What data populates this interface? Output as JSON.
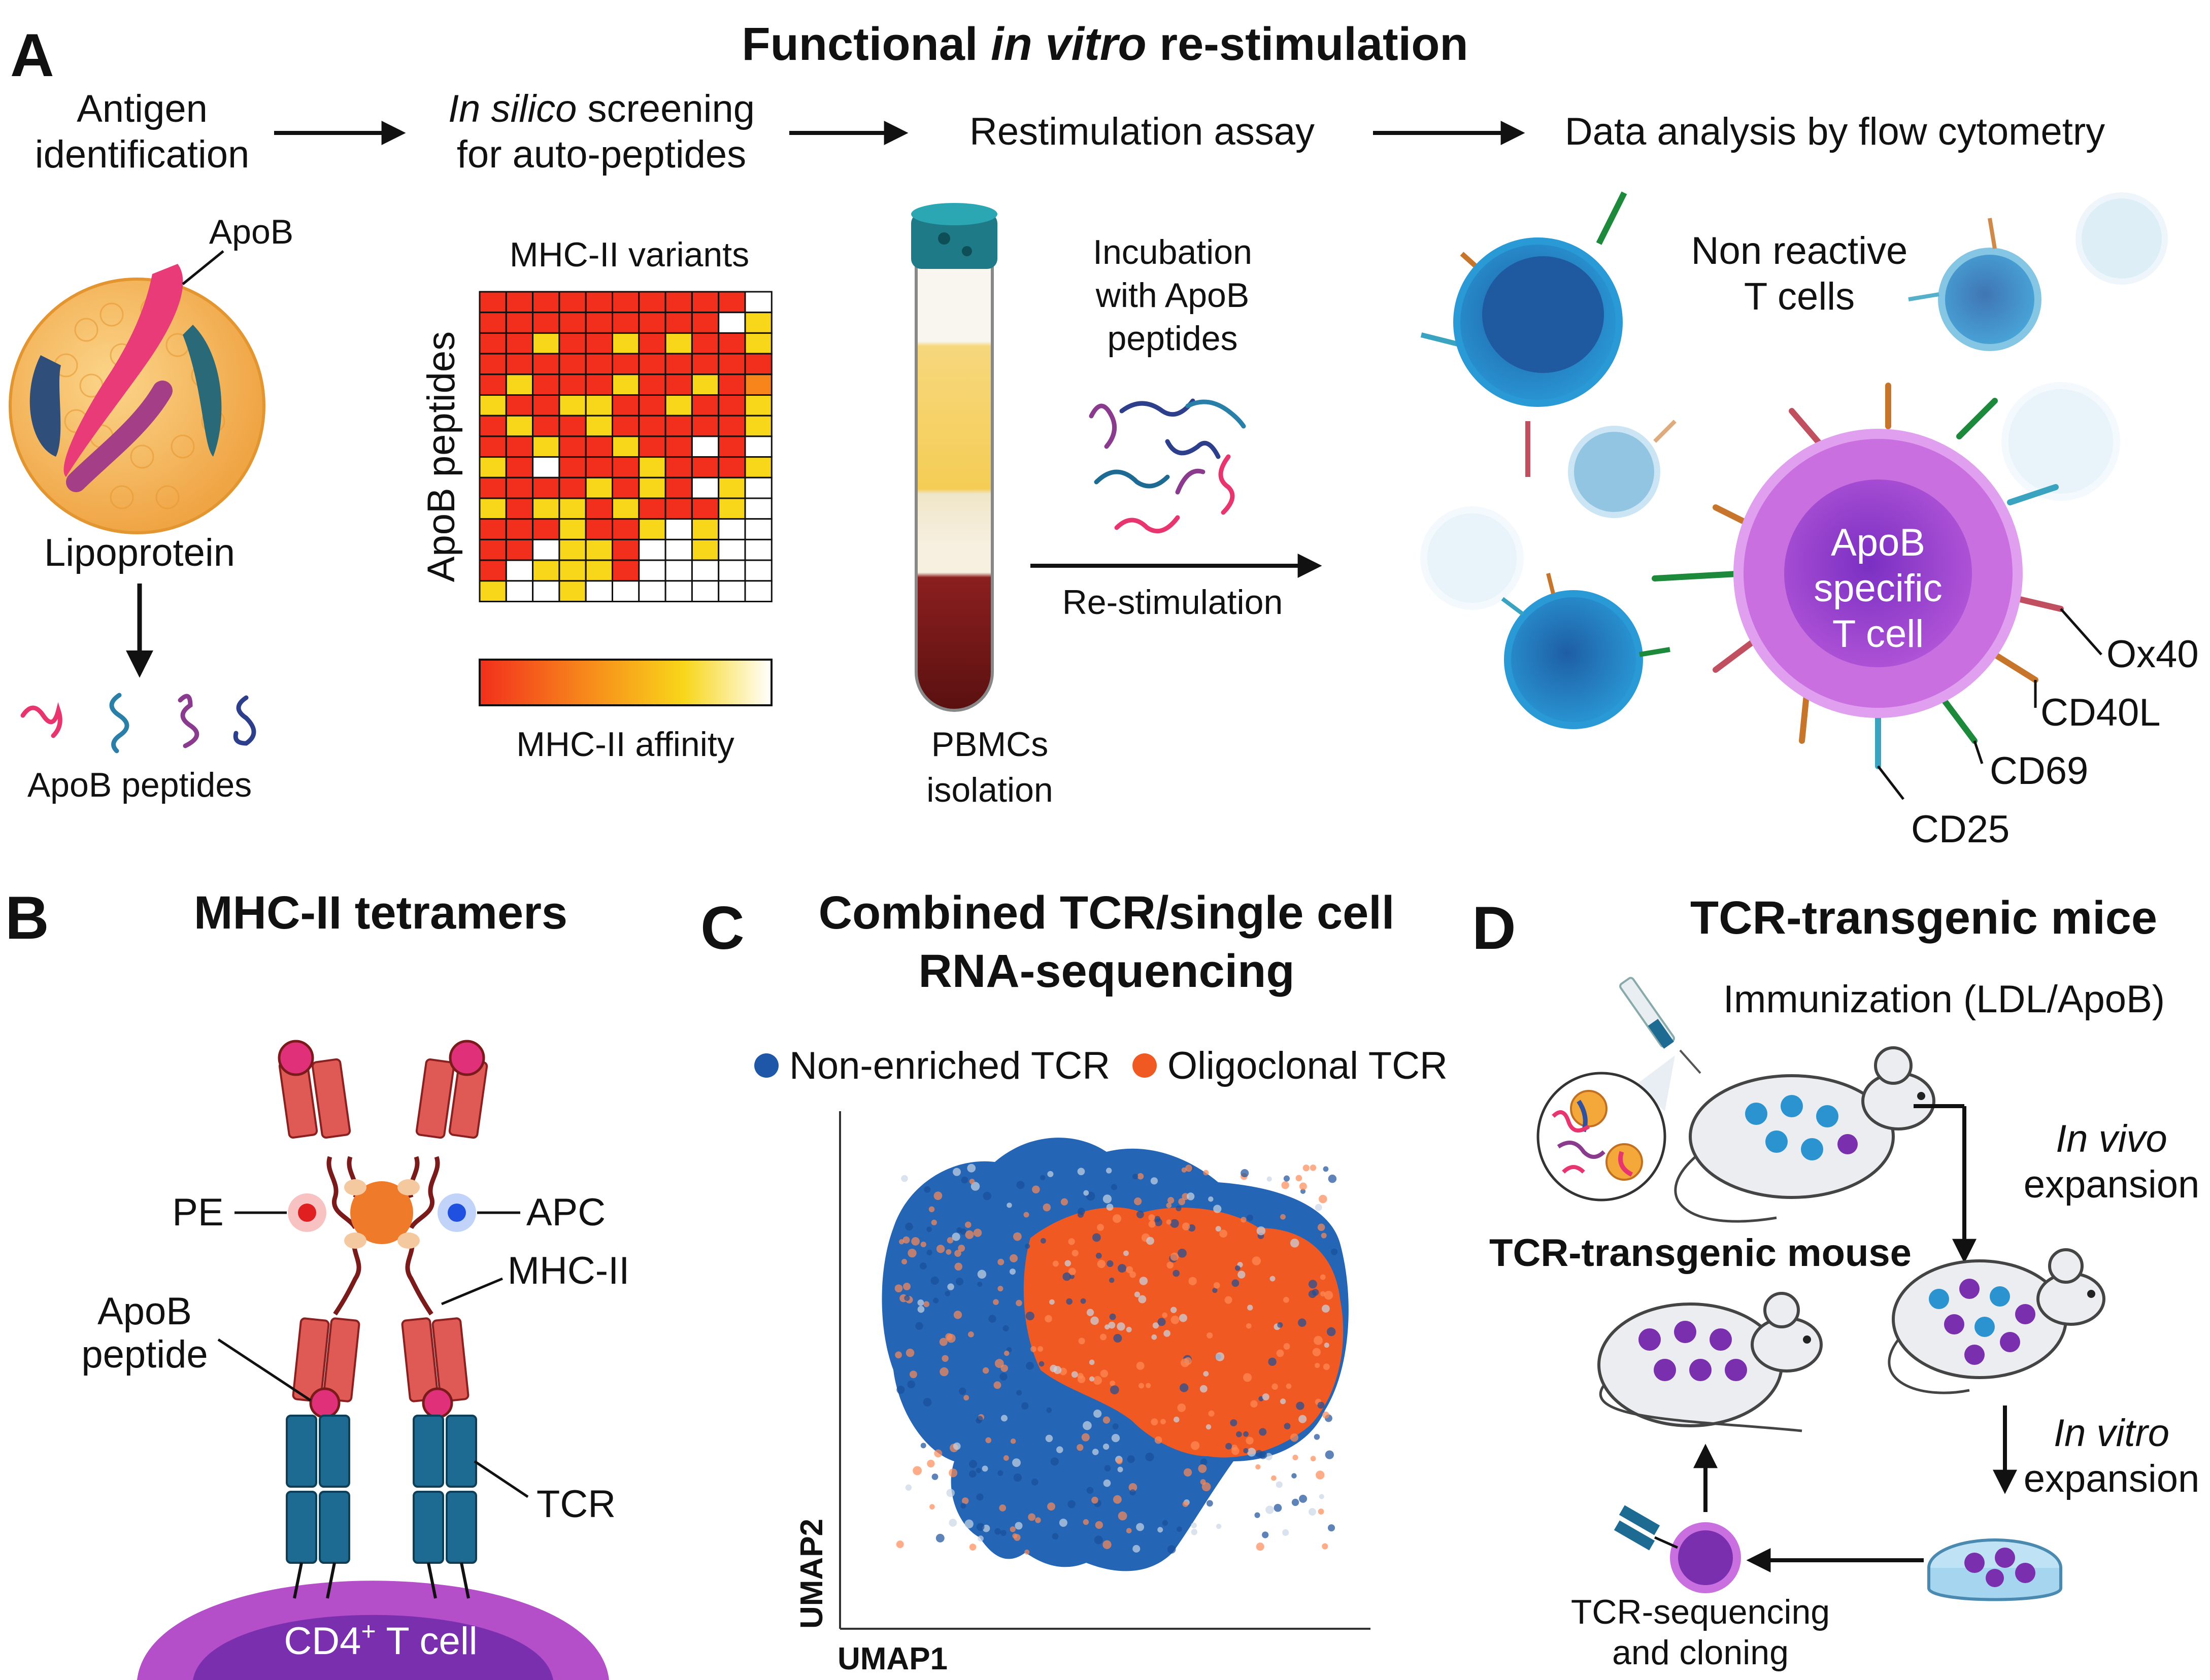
{
  "panels": {
    "A": {
      "letter": "A",
      "title_pre": "Functional ",
      "title_em": "in vitro",
      "title_post": " re-stimulation",
      "steps": {
        "antigen_line1": "Antigen",
        "antigen_line2": "identification",
        "insilico_em": "In silico",
        "insilico_line1_rest": " screening",
        "insilico_line2": "for auto-peptides",
        "restim": "Restimulation assay",
        "analysis": "Data analysis by flow cytometry"
      },
      "apob_label": "ApoB",
      "lipoprotein_label": "Lipoprotein",
      "apob_peptides_label": "ApoB peptides",
      "heatmap": {
        "top_label": "MHC-II variants",
        "side_label": "ApoB peptides",
        "colorbar_label": "MHC-II affinity",
        "colors": {
          "red": "#f22f1c",
          "orange": "#f7851b",
          "yellow": "#f8d61a",
          "white": "#ffffff"
        },
        "grid": [
          "RRRRRRRRRRW",
          "RRRRRRRRRWY",
          "RRYRRYRYRRY",
          "RRRRRRRRRRR",
          "RYRRRYRRYRO",
          "YRRYYRRYRRY",
          "RYRRYRRRRRY",
          "RRYRRYRRWRW",
          "YRWRRRYRRRY",
          "RRRRYRYRWYW",
          "YRYYRYRRRYW",
          "RRRYRRYWYWW",
          "RRWYYRWWYWW",
          "RWYYYRWWWWW",
          "YWWYWWWWWWW"
        ]
      },
      "incubation_line1": "Incubation",
      "incubation_line2": "with ApoB",
      "incubation_line3": "peptides",
      "restimulation_label": "Re-stimulation",
      "pbmc_line1": "PBMCs",
      "pbmc_line2": "isolation",
      "nonreactive_line1": "Non reactive",
      "nonreactive_line2": "T cells",
      "specific_line1": "ApoB",
      "specific_line2": "specific",
      "specific_line3": "T cell",
      "markers": [
        "Ox40",
        "CD40L",
        "CD69",
        "CD25"
      ]
    },
    "B": {
      "letter": "B",
      "title": "MHC-II tetramers",
      "pe": "PE",
      "apc": "APC",
      "mhc": "MHC-II",
      "peptide_line1": "ApoB",
      "peptide_line2": "peptide",
      "tcr": "TCR",
      "cell_pre": "CD4",
      "cell_sup": "+",
      "cell_post": " T cell"
    },
    "C": {
      "letter": "C",
      "title_line1": "Combined TCR/single cell",
      "title_line2": "RNA-sequencing",
      "legend": [
        {
          "label": "Non-enriched TCR",
          "color": "#1f57a8"
        },
        {
          "label": "Oligoclonal TCR",
          "color": "#f05a22"
        }
      ],
      "xlabel": "UMAP1",
      "ylabel": "UMAP2"
    },
    "D": {
      "letter": "D",
      "title": "TCR-transgenic mice",
      "immunization": "Immunization (LDL/ApoB)",
      "invivo_em": "In vivo",
      "invivo_rest": "expansion",
      "invitro_em": "In vitro",
      "invitro_rest": "expansion",
      "mouse_label": "TCR-transgenic mouse",
      "seq_line1": "TCR-sequencing",
      "seq_line2": "and cloning"
    }
  },
  "colors": {
    "cell_blue": "#2a86c4",
    "cell_purple": "#a64fcf",
    "mhc_red": "#e05050",
    "tcr_blue": "#1d6a93",
    "tube_red": "#7a1a1a",
    "tube_yellow": "#f6cf5c"
  }
}
